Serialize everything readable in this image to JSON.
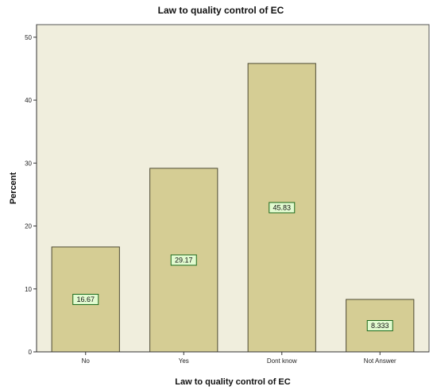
{
  "chart_data": {
    "type": "bar",
    "title": "Law to quality control of EC",
    "xlabel": "Law to quality control of EC",
    "ylabel": "Percent",
    "categories": [
      "No",
      "Yes",
      "Dont know",
      "Not Answer"
    ],
    "values": [
      16.67,
      29.17,
      45.83,
      8.333
    ],
    "value_labels": [
      "16.67",
      "29.17",
      "45.83",
      "8.333"
    ],
    "yticks": [
      "0",
      "10",
      "20",
      "30",
      "40",
      "50"
    ],
    "ylim": [
      0,
      52
    ],
    "grid": false,
    "legend": "none",
    "colors": {
      "plot_background": "#f0eedd",
      "bar_fill": "#d5cd94",
      "bar_stroke": "#4d4a33",
      "label_fill": "#e2fbd0",
      "label_stroke": "#1c6a1c"
    }
  }
}
